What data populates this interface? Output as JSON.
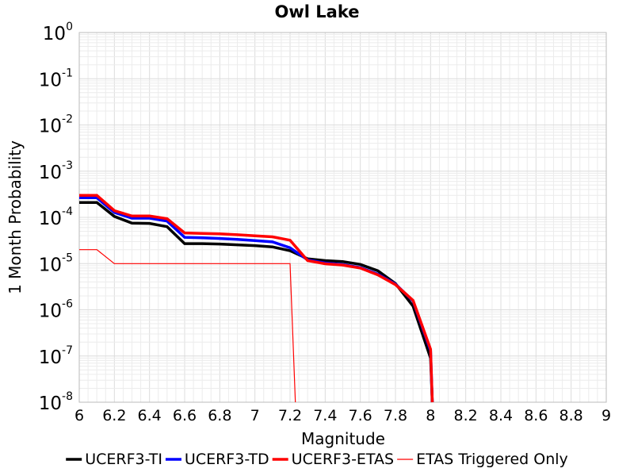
{
  "chart_data": {
    "type": "line",
    "title": "Owl Lake",
    "xlabel": "Magnitude",
    "ylabel": "1 Month Probability",
    "xlim": [
      6,
      9
    ],
    "ylim": [
      1e-08,
      1
    ],
    "yscale": "log",
    "grid": true,
    "legend_position": "bottom",
    "x_ticks": [
      "6",
      "6.2",
      "6.4",
      "6.6",
      "6.8",
      "7",
      "7.2",
      "7.4",
      "7.6",
      "7.8",
      "8",
      "8.2",
      "8.4",
      "8.6",
      "8.8",
      "9"
    ],
    "y_ticks": [
      {
        "base": "10",
        "exp": "0"
      },
      {
        "base": "10",
        "exp": "-1"
      },
      {
        "base": "10",
        "exp": "-2"
      },
      {
        "base": "10",
        "exp": "-3"
      },
      {
        "base": "10",
        "exp": "-4"
      },
      {
        "base": "10",
        "exp": "-5"
      },
      {
        "base": "10",
        "exp": "-6"
      },
      {
        "base": "10",
        "exp": "-7"
      },
      {
        "base": "10",
        "exp": "-8"
      }
    ],
    "x": [
      6.0,
      6.1,
      6.2,
      6.3,
      6.4,
      6.5,
      6.6,
      6.7,
      6.8,
      6.9,
      7.0,
      7.1,
      7.2,
      7.3,
      7.4,
      7.5,
      7.6,
      7.7,
      7.8,
      7.9,
      8.0,
      8.01
    ],
    "series": [
      {
        "name": "UCERF3-TI",
        "color": "#000000",
        "width": 3.5,
        "values": [
          0.00021,
          0.00021,
          0.000105,
          7.5e-05,
          7.4e-05,
          6.3e-05,
          2.7e-05,
          2.7e-05,
          2.65e-05,
          2.55e-05,
          2.45e-05,
          2.3e-05,
          1.9e-05,
          1.27e-05,
          1.16e-05,
          1.1e-05,
          9.6e-06,
          7e-06,
          3.7e-06,
          1.2e-06,
          9e-08,
          1e-08
        ]
      },
      {
        "name": "UCERF3-TD",
        "color": "#0000ff",
        "width": 3.5,
        "values": [
          0.000265,
          0.000265,
          0.000128,
          9.6e-05,
          9.6e-05,
          8.3e-05,
          3.7e-05,
          3.6e-05,
          3.5e-05,
          3.35e-05,
          3.15e-05,
          2.95e-05,
          2.2e-05,
          1.2e-05,
          1.03e-05,
          9.5e-06,
          8.2e-06,
          5.9e-06,
          3.6e-06,
          1.55e-06,
          1.3e-07,
          1e-08
        ]
      },
      {
        "name": "UCERF3-ETAS",
        "color": "#ff0000",
        "width": 3.5,
        "values": [
          0.0003,
          0.0003,
          0.00014,
          0.000107,
          0.000107,
          9.4e-05,
          4.6e-05,
          4.5e-05,
          4.4e-05,
          4.2e-05,
          4e-05,
          3.8e-05,
          3.2e-05,
          1.16e-05,
          9.9e-06,
          9.3e-06,
          8e-06,
          5.7e-06,
          3.5e-06,
          1.6e-06,
          1.4e-07,
          1e-08
        ]
      },
      {
        "name": "ETAS Triggered Only",
        "color": "#ff0000",
        "width": 1.2,
        "x": [
          6.0,
          6.1,
          6.2,
          6.3,
          6.4,
          6.5,
          6.6,
          6.7,
          6.8,
          6.9,
          7.0,
          7.1,
          7.2,
          7.23
        ],
        "values": [
          2e-05,
          2e-05,
          1e-05,
          1e-05,
          1e-05,
          1e-05,
          1e-05,
          1e-05,
          1e-05,
          1e-05,
          1e-05,
          1e-05,
          1e-05,
          1e-08
        ]
      }
    ]
  }
}
